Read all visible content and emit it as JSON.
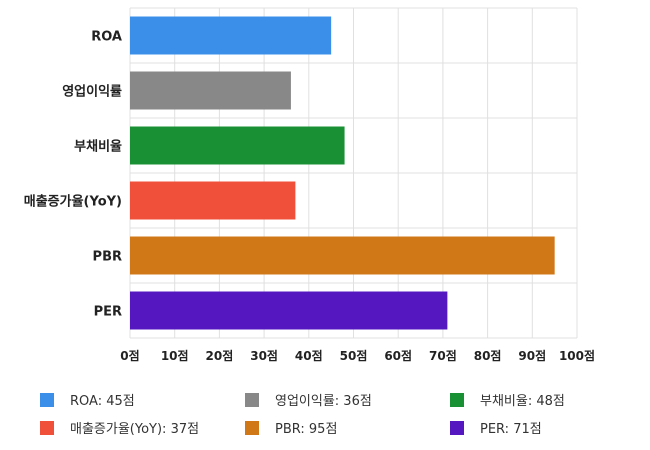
{
  "chart_data": {
    "type": "bar",
    "orientation": "horizontal",
    "categories": [
      "ROA",
      "영업이익률",
      "부채비율",
      "매출증가율(YoY)",
      "PBR",
      "PER"
    ],
    "values": [
      45,
      36,
      48,
      37,
      95,
      71
    ],
    "colors": [
      "#3b8fe8",
      "#888888",
      "#1a9035",
      "#f0503a",
      "#d07818",
      "#5518c0"
    ],
    "xlim": [
      0,
      100
    ],
    "xticks": [
      0,
      10,
      20,
      30,
      40,
      50,
      60,
      70,
      80,
      90,
      100
    ],
    "tick_suffix": "점",
    "grid": true,
    "legend_position": "bottom",
    "legend": [
      "ROA: 45점",
      "영업이익률: 36점",
      "부채비율: 48점",
      "매출증가율(YoY): 37점",
      "PBR: 95점",
      "PER: 71점"
    ]
  }
}
